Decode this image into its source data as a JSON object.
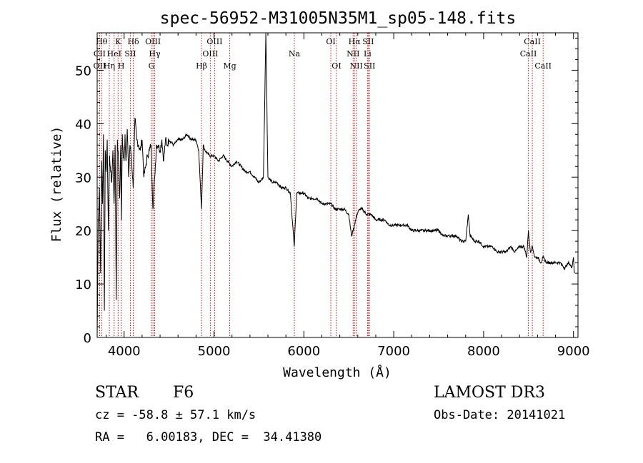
{
  "chart_data": {
    "type": "line",
    "title": "spec-56952-M31005N35M1_sp05-148.fits",
    "xlabel": "Wavelength (Å)",
    "ylabel": "Flux (relative)",
    "xlim": [
      3700,
      9050
    ],
    "ylim": [
      0,
      57
    ],
    "xticks": [
      4000,
      5000,
      6000,
      7000,
      8000,
      9000
    ],
    "yticks": [
      0,
      10,
      20,
      30,
      40,
      50
    ],
    "series": [
      {
        "name": "spectrum",
        "x": [
          3700,
          3712,
          3725,
          3738,
          3750,
          3760,
          3770,
          3780,
          3790,
          3800,
          3812,
          3825,
          3838,
          3850,
          3862,
          3875,
          3888,
          3900,
          3912,
          3925,
          3938,
          3950,
          3962,
          3970,
          3980,
          3990,
          4000,
          4010,
          4020,
          4035,
          4050,
          4065,
          4080,
          4101,
          4120,
          4140,
          4160,
          4180,
          4200,
          4220,
          4240,
          4260,
          4280,
          4300,
          4320,
          4340,
          4360,
          4380,
          4400,
          4420,
          4440,
          4460,
          4480,
          4500,
          4550,
          4600,
          4650,
          4700,
          4750,
          4800,
          4830,
          4861,
          4880,
          4900,
          4950,
          5000,
          5050,
          5100,
          5150,
          5200,
          5250,
          5300,
          5350,
          5400,
          5450,
          5500,
          5550,
          5577,
          5600,
          5650,
          5700,
          5750,
          5800,
          5850,
          5893,
          5920,
          5950,
          6000,
          6050,
          6100,
          6150,
          6200,
          6250,
          6300,
          6350,
          6400,
          6450,
          6500,
          6530,
          6563,
          6590,
          6620,
          6650,
          6700,
          6750,
          6800,
          6850,
          6900,
          6950,
          7000,
          7050,
          7100,
          7150,
          7200,
          7250,
          7300,
          7350,
          7400,
          7450,
          7500,
          7550,
          7600,
          7650,
          7700,
          7750,
          7800,
          7830,
          7850,
          7900,
          7950,
          8000,
          8050,
          8100,
          8150,
          8200,
          8250,
          8300,
          8350,
          8400,
          8450,
          8480,
          8498,
          8520,
          8542,
          8570,
          8600,
          8640,
          8662,
          8700,
          8750,
          8800,
          8850,
          8900,
          8950,
          8980,
          9000,
          9010
        ],
        "values": [
          0,
          22,
          28,
          12,
          33,
          25,
          38,
          5,
          35,
          31,
          37,
          20,
          34,
          31,
          29,
          35,
          25,
          36,
          7,
          37,
          33,
          26,
          36,
          22,
          38,
          34,
          33,
          38,
          33,
          39,
          30,
          36,
          34,
          28,
          41,
          37,
          36,
          35,
          37,
          30,
          32,
          34,
          35,
          36,
          24,
          30,
          36,
          36,
          35,
          37,
          33,
          37,
          36,
          37,
          36,
          37,
          37,
          38,
          37,
          37,
          35,
          24,
          36,
          35,
          34,
          34,
          33,
          34,
          33,
          32,
          33,
          32,
          31,
          31,
          30,
          29,
          30,
          57,
          30,
          29,
          29,
          28,
          28,
          27,
          17,
          27,
          27,
          27,
          26,
          26,
          26,
          25,
          25,
          25,
          24,
          24,
          24,
          23,
          19,
          21,
          23,
          24,
          24,
          23,
          23,
          22,
          22,
          22,
          21,
          21,
          21,
          21,
          21,
          20,
          20,
          20,
          20,
          20,
          20,
          20,
          19,
          19,
          19,
          19,
          18,
          18,
          23,
          19,
          18,
          18,
          17,
          17,
          17,
          16,
          16,
          16,
          17,
          16,
          17,
          17,
          15,
          20,
          16,
          17,
          15,
          15,
          14,
          15,
          14,
          14,
          14,
          14,
          13,
          14,
          13,
          15,
          12
        ]
      }
    ],
    "lines": [
      {
        "name": "CII",
        "wave": 3727,
        "row": 1
      },
      {
        "name": "OII",
        "wave": 3727,
        "row": 2
      },
      {
        "name": "Hθ",
        "wave": 3750,
        "row": 0
      },
      {
        "name": "Hη",
        "wave": 3835,
        "row": 2
      },
      {
        "name": "HeI",
        "wave": 3889,
        "row": 1
      },
      {
        "name": "K",
        "wave": 3933,
        "row": 0
      },
      {
        "name": "H",
        "wave": 3968,
        "row": 2
      },
      {
        "name": "SII",
        "wave": 4070,
        "row": 1
      },
      {
        "name": "Hδ",
        "wave": 4102,
        "row": 0
      },
      {
        "name": "G",
        "wave": 4304,
        "row": 2
      },
      {
        "name": "OIII",
        "wave": 4321,
        "row": 0
      },
      {
        "name": "Hγ",
        "wave": 4340,
        "row": 1
      },
      {
        "name": "Hβ",
        "wave": 4861,
        "row": 2
      },
      {
        "name": "OIII",
        "wave": 4959,
        "row": 1
      },
      {
        "name": "OIII",
        "wave": 5007,
        "row": 0
      },
      {
        "name": "Mg",
        "wave": 5175,
        "row": 2
      },
      {
        "name": "Na",
        "wave": 5894,
        "row": 1
      },
      {
        "name": "OI",
        "wave": 6300,
        "row": 0
      },
      {
        "name": "OI",
        "wave": 6363,
        "row": 2
      },
      {
        "name": "NII",
        "wave": 6548,
        "row": 1
      },
      {
        "name": "Hα",
        "wave": 6563,
        "row": 0
      },
      {
        "name": "NII",
        "wave": 6583,
        "row": 2
      },
      {
        "name": "SII",
        "wave": 6716,
        "row": 0
      },
      {
        "name": "Li",
        "wave": 6708,
        "row": 1
      },
      {
        "name": "SII",
        "wave": 6731,
        "row": 2
      },
      {
        "name": "CaII",
        "wave": 8498,
        "row": 1
      },
      {
        "name": "CaII",
        "wave": 8542,
        "row": 0
      },
      {
        "name": "CaII",
        "wave": 8662,
        "row": 2
      }
    ]
  },
  "info": {
    "class": "STAR",
    "subclass": "F6",
    "cz": "cz = -58.8 ± 57.1 km/s",
    "radec": "RA =   6.00183, DEC =  34.41380",
    "survey": "LAMOST DR3",
    "obsdate": "Obs-Date: 20141021"
  },
  "colors": {
    "spectrum": "#000000",
    "lines": "#cc0000",
    "axes": "#000000"
  }
}
